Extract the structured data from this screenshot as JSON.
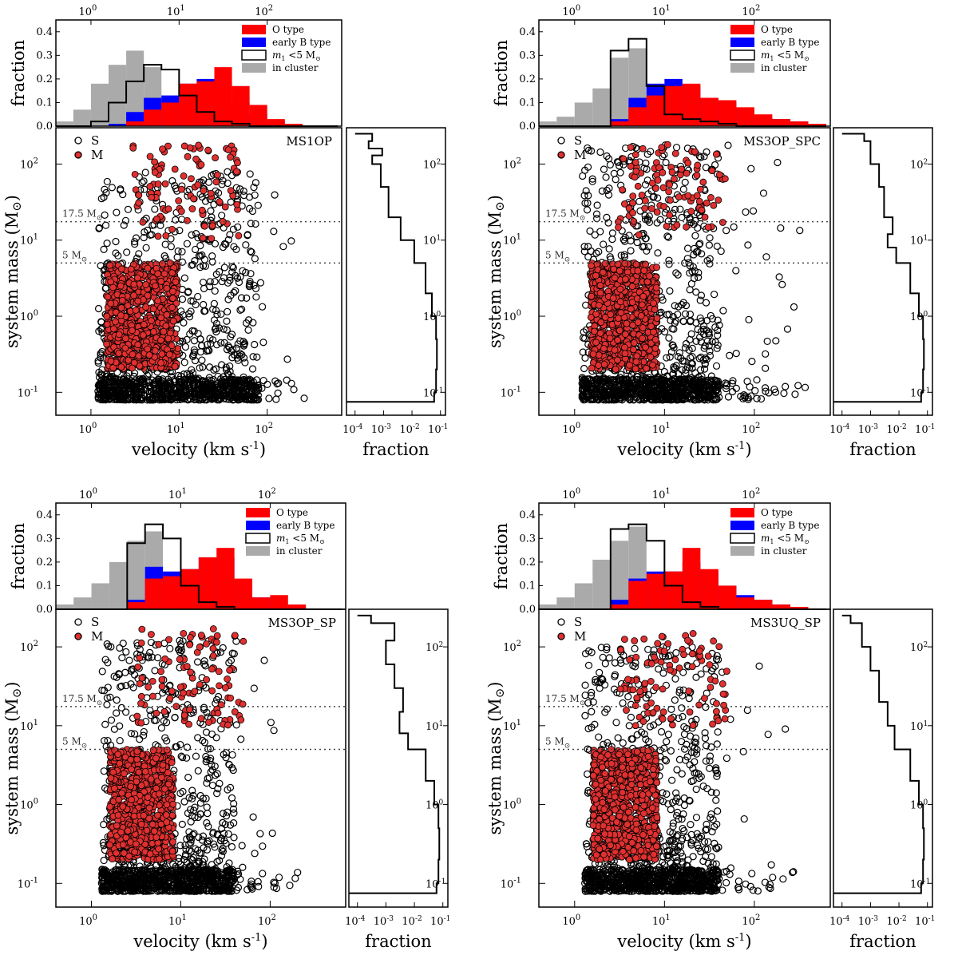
{
  "figure": {
    "x_axis_title": "velocity (km s",
    "x_axis_title_sup": "-1",
    "x_axis_title_end": ")",
    "y_axis_title": "system mass (M",
    "y_axis_title_sun": "⊙",
    "y_axis_title_end": ")",
    "hist_y_title": "fraction",
    "side_x_title": "fraction",
    "hist_yticks": [
      "0.0",
      "0.1",
      "0.2",
      "0.3",
      "0.4"
    ],
    "xticks": [
      "10",
      "10",
      "10"
    ],
    "xtick_exps": [
      "0",
      "1",
      "2"
    ],
    "yticks_base": "10",
    "ytick_exps": [
      "-1",
      "0",
      "1",
      "2"
    ],
    "side_xtick_exps": [
      "-4",
      "-3",
      "-2",
      "-1"
    ],
    "ref_lines": [
      {
        "label": "17.5 M",
        "sub": "⊙",
        "mass": 17.5
      },
      {
        "label": "5 M",
        "sub": "⊙",
        "mass": 5
      }
    ],
    "scatter_legend": [
      {
        "label": "S",
        "marker": "open",
        "color": "#000000"
      },
      {
        "label": "M",
        "marker": "filled",
        "color": "#e03030"
      }
    ],
    "hist_legend": [
      {
        "label": "O type",
        "style": "fill",
        "color": "#ff0000"
      },
      {
        "label": "early B type",
        "style": "fill",
        "color": "#0000ff"
      },
      {
        "label": "<5 M",
        "prefix": "m",
        "prefix_sub": "1",
        "suffix_sub": "⊙",
        "style": "step",
        "color": "#000000"
      },
      {
        "label": "in cluster",
        "style": "fill",
        "color": "#aaaaaa"
      }
    ]
  },
  "chart_data": [
    {
      "type": "scatter",
      "title": "MS1OP",
      "x_scale": "log",
      "y_scale": "log",
      "xlim": [
        0.4,
        700
      ],
      "ylim": [
        0.05,
        300
      ],
      "hist_ylim": [
        0,
        0.45
      ],
      "side_xlim": [
        5e-05,
        0.15
      ],
      "hist_bins_log10": [
        -0.4,
        -0.2,
        0.0,
        0.2,
        0.4,
        0.6,
        0.8,
        1.0,
        1.2,
        1.4,
        1.6,
        1.8,
        2.0,
        2.2,
        2.4,
        2.6,
        2.8
      ],
      "hist_series": {
        "in_cluster": [
          0.02,
          0.07,
          0.18,
          0.26,
          0.32,
          0.25,
          0.13,
          0.05,
          0.01,
          0.0,
          0.0,
          0.0,
          0.0,
          0.0,
          0.0,
          0.0
        ],
        "early_B": [
          0.0,
          0.0,
          0.0,
          0.01,
          0.06,
          0.12,
          0.13,
          0.18,
          0.2,
          0.19,
          0.1,
          0.05,
          0.02,
          0.01,
          0.0,
          0.0
        ],
        "O_type": [
          0.0,
          0.0,
          0.0,
          0.0,
          0.02,
          0.07,
          0.1,
          0.18,
          0.19,
          0.25,
          0.17,
          0.09,
          0.03,
          0.01,
          0.0,
          0.0
        ],
        "m1_lt_5": [
          0.0,
          0.0,
          0.02,
          0.1,
          0.19,
          0.26,
          0.24,
          0.13,
          0.06,
          0.02,
          0.01,
          0.0,
          0.0,
          0.0,
          0.0,
          0.0
        ]
      },
      "side_profile": [
        {
          "mass": 0.075,
          "fraction": 0.06
        },
        {
          "mass": 0.1,
          "fraction": 0.07
        },
        {
          "mass": 0.2,
          "fraction": 0.075
        },
        {
          "mass": 0.5,
          "fraction": 0.07
        },
        {
          "mass": 1.0,
          "fraction": 0.05
        },
        {
          "mass": 2.0,
          "fraction": 0.03
        },
        {
          "mass": 5.0,
          "fraction": 0.012
        },
        {
          "mass": 10,
          "fraction": 0.004
        },
        {
          "mass": 20,
          "fraction": 0.0015
        },
        {
          "mass": 50,
          "fraction": 0.0008
        },
        {
          "mass": 100,
          "fraction": 0.0004
        },
        {
          "mass": 130,
          "fraction": 0.0009
        },
        {
          "mass": 160,
          "fraction": 0.0003
        },
        {
          "mass": 200,
          "fraction": 0.0004
        },
        {
          "mass": 250,
          "fraction": 0.0001
        }
      ],
      "scatter_S": {
        "vmin": 1.2,
        "vmax": 80,
        "vtail": 300,
        "mmax": 80
      },
      "scatter_M": {
        "vmin": 1.5,
        "vmax": 12,
        "vtail": 40,
        "mmax": 180
      }
    },
    {
      "type": "scatter",
      "title": "MS3OP_SPC",
      "x_scale": "log",
      "y_scale": "log",
      "xlim": [
        0.4,
        700
      ],
      "ylim": [
        0.05,
        300
      ],
      "hist_ylim": [
        0,
        0.45
      ],
      "side_xlim": [
        5e-05,
        0.15
      ],
      "hist_bins_log10": [
        -0.4,
        -0.2,
        0.0,
        0.2,
        0.4,
        0.6,
        0.8,
        1.0,
        1.2,
        1.4,
        1.6,
        1.8,
        2.0,
        2.2,
        2.4,
        2.6,
        2.8
      ],
      "hist_series": {
        "in_cluster": [
          0.02,
          0.04,
          0.1,
          0.16,
          0.29,
          0.33,
          0.11,
          0.03,
          0.01,
          0.0,
          0.0,
          0.0,
          0.0,
          0.0,
          0.0,
          0.0
        ],
        "early_B": [
          0.0,
          0.0,
          0.0,
          0.0,
          0.03,
          0.12,
          0.18,
          0.2,
          0.17,
          0.12,
          0.1,
          0.07,
          0.04,
          0.03,
          0.02,
          0.01
        ],
        "O_type": [
          0.0,
          0.0,
          0.0,
          0.0,
          0.02,
          0.08,
          0.13,
          0.17,
          0.18,
          0.12,
          0.11,
          0.08,
          0.05,
          0.03,
          0.02,
          0.01
        ],
        "m1_lt_5": [
          0.0,
          0.0,
          0.0,
          0.0,
          0.32,
          0.37,
          0.17,
          0.05,
          0.03,
          0.02,
          0.01,
          0.0,
          0.0,
          0.0,
          0.0,
          0.0
        ]
      },
      "side_profile": [
        {
          "mass": 0.075,
          "fraction": 0.06
        },
        {
          "mass": 0.1,
          "fraction": 0.07
        },
        {
          "mass": 0.2,
          "fraction": 0.075
        },
        {
          "mass": 0.5,
          "fraction": 0.07
        },
        {
          "mass": 1.0,
          "fraction": 0.05
        },
        {
          "mass": 2.0,
          "fraction": 0.025
        },
        {
          "mass": 5.0,
          "fraction": 0.008
        },
        {
          "mass": 8,
          "fraction": 0.004
        },
        {
          "mass": 12,
          "fraction": 0.006
        },
        {
          "mass": 20,
          "fraction": 0.003
        },
        {
          "mass": 50,
          "fraction": 0.002
        },
        {
          "mass": 100,
          "fraction": 0.001
        },
        {
          "mass": 200,
          "fraction": 0.0006
        },
        {
          "mass": 250,
          "fraction": 0.0001
        }
      ],
      "scatter_S": {
        "vmin": 1.2,
        "vmax": 40,
        "vtail": 600,
        "mmax": 180
      },
      "scatter_M": {
        "vmin": 1.5,
        "vmax": 10,
        "vtail": 60,
        "mmax": 180
      }
    },
    {
      "type": "scatter",
      "title": "MS3OP_SP",
      "x_scale": "log",
      "y_scale": "log",
      "xlim": [
        0.4,
        700
      ],
      "ylim": [
        0.05,
        300
      ],
      "hist_ylim": [
        0,
        0.45
      ],
      "side_xlim": [
        5e-05,
        0.15
      ],
      "hist_bins_log10": [
        -0.4,
        -0.2,
        0.0,
        0.2,
        0.4,
        0.6,
        0.8,
        1.0,
        1.2,
        1.4,
        1.6,
        1.8,
        2.0,
        2.2,
        2.4,
        2.6,
        2.8
      ],
      "hist_series": {
        "in_cluster": [
          0.02,
          0.05,
          0.11,
          0.2,
          0.29,
          0.33,
          0.11,
          0.03,
          0.01,
          0.0,
          0.0,
          0.0,
          0.0,
          0.0,
          0.0,
          0.0
        ],
        "early_B": [
          0.0,
          0.0,
          0.0,
          0.0,
          0.04,
          0.18,
          0.16,
          0.17,
          0.22,
          0.22,
          0.12,
          0.05,
          0.02,
          0.01,
          0.0,
          0.0
        ],
        "O_type": [
          0.0,
          0.0,
          0.0,
          0.0,
          0.03,
          0.13,
          0.14,
          0.17,
          0.22,
          0.26,
          0.13,
          0.05,
          0.06,
          0.02,
          0.0,
          0.0
        ],
        "m1_lt_5": [
          0.0,
          0.0,
          0.0,
          0.0,
          0.28,
          0.36,
          0.3,
          0.1,
          0.03,
          0.01,
          0.0,
          0.0,
          0.0,
          0.0,
          0.0,
          0.0
        ]
      },
      "side_profile": [
        {
          "mass": 0.075,
          "fraction": 0.06
        },
        {
          "mass": 0.1,
          "fraction": 0.07
        },
        {
          "mass": 0.2,
          "fraction": 0.075
        },
        {
          "mass": 0.5,
          "fraction": 0.07
        },
        {
          "mass": 1.0,
          "fraction": 0.05
        },
        {
          "mass": 2.0,
          "fraction": 0.025
        },
        {
          "mass": 5.0,
          "fraction": 0.006
        },
        {
          "mass": 8,
          "fraction": 0.003
        },
        {
          "mass": 15,
          "fraction": 0.004
        },
        {
          "mass": 30,
          "fraction": 0.002
        },
        {
          "mass": 60,
          "fraction": 0.001
        },
        {
          "mass": 120,
          "fraction": 0.002
        },
        {
          "mass": 200,
          "fraction": 0.0003
        },
        {
          "mass": 250,
          "fraction": 0.0001
        }
      ],
      "scatter_S": {
        "vmin": 1.3,
        "vmax": 40,
        "vtail": 300,
        "mmax": 120
      },
      "scatter_M": {
        "vmin": 1.6,
        "vmax": 10,
        "vtail": 60,
        "mmax": 180
      }
    },
    {
      "type": "scatter",
      "title": "MS3UQ_SP",
      "x_scale": "log",
      "y_scale": "log",
      "xlim": [
        0.4,
        700
      ],
      "ylim": [
        0.05,
        300
      ],
      "hist_ylim": [
        0,
        0.45
      ],
      "side_xlim": [
        5e-05,
        0.15
      ],
      "hist_bins_log10": [
        -0.4,
        -0.2,
        0.0,
        0.2,
        0.4,
        0.6,
        0.8,
        1.0,
        1.2,
        1.4,
        1.6,
        1.8,
        2.0,
        2.2,
        2.4,
        2.6,
        2.8
      ],
      "hist_series": {
        "in_cluster": [
          0.02,
          0.05,
          0.11,
          0.21,
          0.29,
          0.35,
          0.12,
          0.03,
          0.01,
          0.0,
          0.0,
          0.0,
          0.0,
          0.0,
          0.0,
          0.0
        ],
        "early_B": [
          0.0,
          0.0,
          0.0,
          0.0,
          0.04,
          0.13,
          0.16,
          0.16,
          0.2,
          0.16,
          0.1,
          0.06,
          0.04,
          0.02,
          0.01,
          0.0
        ],
        "O_type": [
          0.0,
          0.0,
          0.0,
          0.0,
          0.02,
          0.12,
          0.15,
          0.16,
          0.26,
          0.17,
          0.1,
          0.05,
          0.04,
          0.02,
          0.01,
          0.0
        ],
        "m1_lt_5": [
          0.0,
          0.0,
          0.0,
          0.0,
          0.34,
          0.36,
          0.29,
          0.1,
          0.03,
          0.01,
          0.0,
          0.0,
          0.0,
          0.0,
          0.0,
          0.0
        ]
      },
      "side_profile": [
        {
          "mass": 0.075,
          "fraction": 0.06
        },
        {
          "mass": 0.1,
          "fraction": 0.07
        },
        {
          "mass": 0.2,
          "fraction": 0.075
        },
        {
          "mass": 0.5,
          "fraction": 0.07
        },
        {
          "mass": 1.0,
          "fraction": 0.05
        },
        {
          "mass": 2.0,
          "fraction": 0.025
        },
        {
          "mass": 5.0,
          "fraction": 0.007
        },
        {
          "mass": 10,
          "fraction": 0.004
        },
        {
          "mass": 20,
          "fraction": 0.002
        },
        {
          "mass": 50,
          "fraction": 0.001
        },
        {
          "mass": 100,
          "fraction": 0.0005
        },
        {
          "mass": 200,
          "fraction": 0.0002
        },
        {
          "mass": 250,
          "fraction": 0.0001
        }
      ],
      "scatter_S": {
        "vmin": 1.3,
        "vmax": 40,
        "vtail": 400,
        "mmax": 100
      },
      "scatter_M": {
        "vmin": 1.6,
        "vmax": 10,
        "vtail": 60,
        "mmax": 150
      }
    }
  ]
}
